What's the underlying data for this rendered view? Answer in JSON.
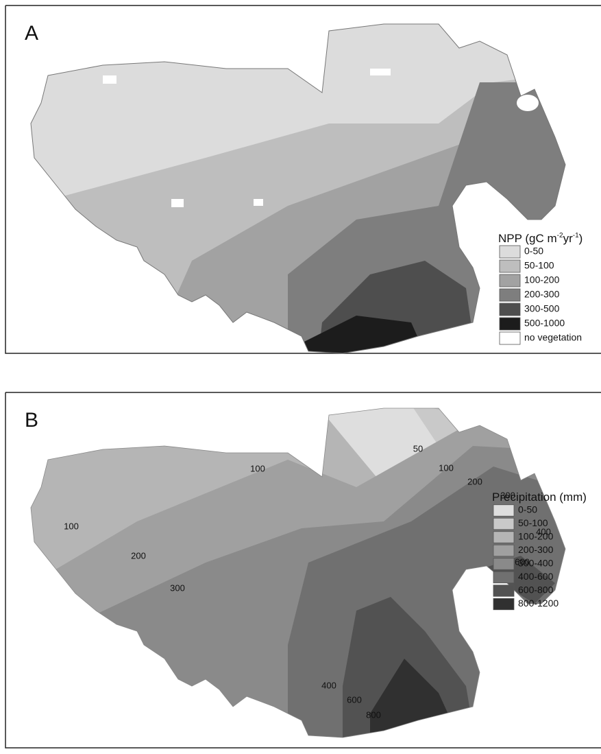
{
  "panels": [
    {
      "label": "A",
      "legend": {
        "title_parts": [
          "NPP (gC m",
          "-2",
          "yr",
          "-1",
          ")"
        ],
        "items": [
          {
            "label": "0-50",
            "color": "#dcdcdc"
          },
          {
            "label": "50-100",
            "color": "#bebebe"
          },
          {
            "label": "100-200",
            "color": "#a2a2a2"
          },
          {
            "label": "200-300",
            "color": "#7e7e7e"
          },
          {
            "label": "300-500",
            "color": "#4e4e4e"
          },
          {
            "label": "500-1000",
            "color": "#1c1c1c"
          },
          {
            "label": "no vegetation",
            "color": "#ffffff"
          }
        ]
      }
    },
    {
      "label": "B",
      "legend": {
        "title_parts": [
          "Precipitation (mm)"
        ],
        "items": [
          {
            "label": "0-50",
            "color": "#dedede"
          },
          {
            "label": "50-100",
            "color": "#c9c9c9"
          },
          {
            "label": "100-200",
            "color": "#b5b5b5"
          },
          {
            "label": "200-300",
            "color": "#a0a0a0"
          },
          {
            "label": "300-400",
            "color": "#8a8a8a"
          },
          {
            "label": "400-600",
            "color": "#707070"
          },
          {
            "label": "600-800",
            "color": "#525252"
          },
          {
            "label": "800-1200",
            "color": "#303030"
          }
        ]
      },
      "contour_labels": [
        "50",
        "100",
        "200",
        "300",
        "100",
        "100",
        "400",
        "200",
        "600",
        "300",
        "400",
        "600",
        "800"
      ]
    }
  ]
}
